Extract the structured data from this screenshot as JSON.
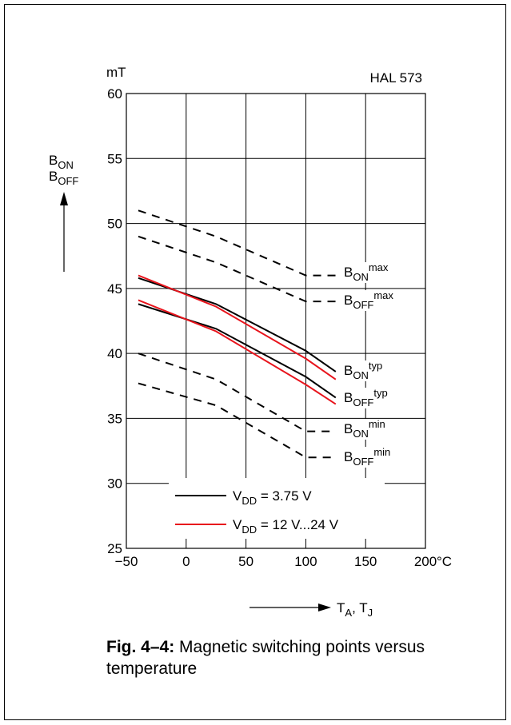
{
  "chart_data": {
    "type": "line",
    "title": "HAL 573",
    "ylabel_unit": "mT",
    "ylabel_parts": [
      {
        "main": "B",
        "sub": "ON"
      },
      {
        "main": "B",
        "sub": "OFF"
      }
    ],
    "xlabel_parts": [
      {
        "main": "T",
        "sub": "A"
      },
      {
        "main": ", T",
        "sub": "J"
      }
    ],
    "xlim": [
      -50,
      200
    ],
    "ylim": [
      25,
      60
    ],
    "x_ticks": [
      -50,
      0,
      50,
      100,
      150,
      200
    ],
    "x_tick_labels": [
      "−50",
      "0",
      "50",
      "100",
      "150",
      "200"
    ],
    "x_unit": "°C",
    "y_ticks": [
      25,
      30,
      35,
      40,
      45,
      50,
      55,
      60
    ],
    "y_tick_labels": [
      "25",
      "30",
      "35",
      "40",
      "45",
      "50",
      "55",
      "60"
    ],
    "grid": true,
    "series": [
      {
        "label_main": "B",
        "label_sub": "ON",
        "label_sup": "max",
        "style": "dashed",
        "color": "#000000",
        "x": [
          -40,
          25,
          100,
          125
        ],
        "y": [
          51.0,
          49.0,
          46.0,
          46.0
        ]
      },
      {
        "label_main": "B",
        "label_sub": "OFF",
        "label_sup": "max",
        "style": "dashed",
        "color": "#000000",
        "x": [
          -40,
          25,
          100,
          125
        ],
        "y": [
          49.0,
          47.0,
          44.0,
          44.0
        ]
      },
      {
        "label_main": "B",
        "label_sub": "ON",
        "label_sup": "typ",
        "style": "solid",
        "color": "#000000",
        "x": [
          -40,
          25,
          100,
          125
        ],
        "y": [
          45.8,
          43.8,
          40.2,
          38.6
        ]
      },
      {
        "style": "solid",
        "color": "#e8141c",
        "x": [
          -40,
          25,
          100,
          125
        ],
        "y": [
          46.0,
          43.6,
          39.6,
          38.0
        ]
      },
      {
        "label_main": "B",
        "label_sub": "OFF",
        "label_sup": "typ",
        "style": "solid",
        "color": "#000000",
        "x": [
          -40,
          25,
          100,
          125
        ],
        "y": [
          43.8,
          41.9,
          38.2,
          36.6
        ]
      },
      {
        "style": "solid",
        "color": "#e8141c",
        "x": [
          -40,
          25,
          100,
          125
        ],
        "y": [
          44.1,
          41.7,
          37.6,
          36.1
        ]
      },
      {
        "label_main": "B",
        "label_sub": "ON",
        "label_sup": "min",
        "style": "dashed",
        "color": "#000000",
        "x": [
          -40,
          25,
          100,
          125
        ],
        "y": [
          40.0,
          38.0,
          34.0,
          34.0
        ]
      },
      {
        "label_main": "B",
        "label_sub": "OFF",
        "label_sup": "min",
        "style": "dashed",
        "color": "#000000",
        "x": [
          -40,
          25,
          100,
          125
        ],
        "y": [
          37.7,
          36.0,
          32.0,
          32.0
        ]
      }
    ],
    "legend": [
      {
        "color": "#000000",
        "main": "V",
        "sub": "DD",
        "text": " = 3.75 V"
      },
      {
        "color": "#e8141c",
        "main": "V",
        "sub": "DD",
        "text": " = 12 V...24 V"
      }
    ],
    "legend_position": "bottom-left"
  },
  "caption": {
    "bold": "Fig. 4–4:",
    "text": " Magnetic switching points versus temperature"
  }
}
